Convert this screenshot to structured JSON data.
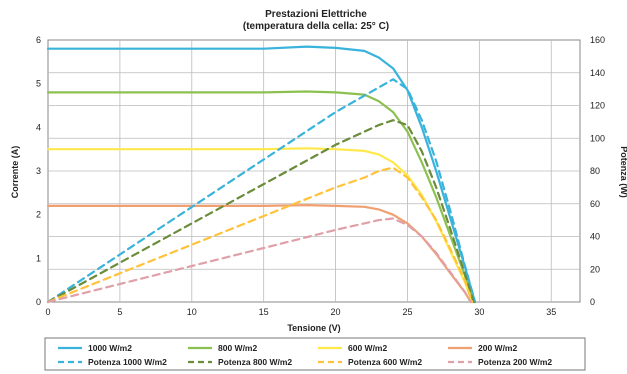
{
  "chart_data": {
    "type": "line",
    "title": "Prestazioni Elettriche",
    "subtitle": "(temperatura della cella: 25° C)",
    "xlabel": "Tensione (V)",
    "ylabel_left": "Corrente (A)",
    "ylabel_right": "Potenza (W)",
    "xlim": [
      0,
      37
    ],
    "ylim_left": [
      0,
      6
    ],
    "ylim_right": [
      0,
      160
    ],
    "x_ticks": [
      "0",
      "5",
      "10",
      "15",
      "20",
      "25",
      "30",
      "35"
    ],
    "y_left_ticks": [
      "0",
      "1",
      "2",
      "3",
      "4",
      "5",
      "6"
    ],
    "y_right_ticks": [
      "0",
      "20",
      "40",
      "60",
      "80",
      "100",
      "120",
      "140",
      "160"
    ],
    "grid": true,
    "legend_position": "bottom",
    "series": [
      {
        "name": "1000 W/m2",
        "axis": "left",
        "style": "solid",
        "color": "#3ab3dc",
        "points": [
          [
            0,
            5.8
          ],
          [
            5,
            5.8
          ],
          [
            10,
            5.8
          ],
          [
            15,
            5.8
          ],
          [
            18,
            5.85
          ],
          [
            20,
            5.82
          ],
          [
            22,
            5.75
          ],
          [
            23,
            5.6
          ],
          [
            24,
            5.35
          ],
          [
            25,
            4.85
          ],
          [
            26,
            4.0
          ],
          [
            27,
            3.0
          ],
          [
            28,
            1.9
          ],
          [
            29,
            0.8
          ],
          [
            29.7,
            0
          ]
        ]
      },
      {
        "name": "800 W/m2",
        "axis": "left",
        "style": "solid",
        "color": "#8cc152",
        "points": [
          [
            0,
            4.8
          ],
          [
            5,
            4.8
          ],
          [
            10,
            4.8
          ],
          [
            15,
            4.8
          ],
          [
            18,
            4.82
          ],
          [
            20,
            4.8
          ],
          [
            22,
            4.75
          ],
          [
            23,
            4.6
          ],
          [
            24,
            4.35
          ],
          [
            25,
            3.9
          ],
          [
            26,
            3.2
          ],
          [
            27,
            2.4
          ],
          [
            28,
            1.5
          ],
          [
            29,
            0.6
          ],
          [
            29.6,
            0
          ]
        ]
      },
      {
        "name": "600 W/m2",
        "axis": "left",
        "style": "solid",
        "color": "#ffe84a",
        "points": [
          [
            0,
            3.5
          ],
          [
            5,
            3.5
          ],
          [
            10,
            3.5
          ],
          [
            15,
            3.5
          ],
          [
            18,
            3.52
          ],
          [
            20,
            3.5
          ],
          [
            22,
            3.46
          ],
          [
            23,
            3.38
          ],
          [
            24,
            3.2
          ],
          [
            25,
            2.9
          ],
          [
            26,
            2.45
          ],
          [
            27,
            1.85
          ],
          [
            28,
            1.15
          ],
          [
            29,
            0.45
          ],
          [
            29.5,
            0
          ]
        ]
      },
      {
        "name": "200 W/m2",
        "axis": "left",
        "style": "solid",
        "color": "#f0a070",
        "points": [
          [
            0,
            2.2
          ],
          [
            5,
            2.2
          ],
          [
            10,
            2.2
          ],
          [
            15,
            2.2
          ],
          [
            18,
            2.22
          ],
          [
            20,
            2.2
          ],
          [
            22,
            2.18
          ],
          [
            23,
            2.12
          ],
          [
            24,
            2.0
          ],
          [
            25,
            1.8
          ],
          [
            26,
            1.5
          ],
          [
            27,
            1.1
          ],
          [
            28,
            0.65
          ],
          [
            29,
            0.22
          ],
          [
            29.4,
            0
          ]
        ]
      },
      {
        "name": "Potenza 1000 W/m2",
        "axis": "right",
        "style": "dashed",
        "color": "#3ab3dc",
        "points": [
          [
            0,
            0
          ],
          [
            5,
            29
          ],
          [
            10,
            58
          ],
          [
            15,
            87
          ],
          [
            20,
            116
          ],
          [
            22,
            126
          ],
          [
            23,
            131
          ],
          [
            24,
            136
          ],
          [
            25,
            130
          ],
          [
            26,
            111
          ],
          [
            27,
            86
          ],
          [
            28,
            55
          ],
          [
            29,
            22
          ],
          [
            29.7,
            0
          ]
        ]
      },
      {
        "name": "Potenza 800 W/m2",
        "axis": "right",
        "style": "dashed",
        "color": "#6b8c3a",
        "points": [
          [
            0,
            0
          ],
          [
            5,
            24
          ],
          [
            10,
            48
          ],
          [
            15,
            72
          ],
          [
            20,
            96
          ],
          [
            22,
            104
          ],
          [
            23,
            108
          ],
          [
            24,
            111
          ],
          [
            25,
            108
          ],
          [
            26,
            92
          ],
          [
            27,
            70
          ],
          [
            28,
            44
          ],
          [
            29,
            17
          ],
          [
            29.6,
            0
          ]
        ]
      },
      {
        "name": "Potenza 600 W/m2",
        "axis": "right",
        "style": "dashed",
        "color": "#ffc23a",
        "points": [
          [
            0,
            0
          ],
          [
            5,
            17.5
          ],
          [
            10,
            35
          ],
          [
            15,
            52.5
          ],
          [
            20,
            70
          ],
          [
            22,
            76
          ],
          [
            23,
            80
          ],
          [
            24,
            82
          ],
          [
            25,
            76
          ],
          [
            26,
            64
          ],
          [
            27,
            50
          ],
          [
            28,
            32
          ],
          [
            29,
            13
          ],
          [
            29.5,
            0
          ]
        ]
      },
      {
        "name": "Potenza 200 W/m2",
        "axis": "right",
        "style": "dashed",
        "color": "#e0a0a8",
        "points": [
          [
            0,
            0
          ],
          [
            5,
            11
          ],
          [
            10,
            22
          ],
          [
            15,
            33
          ],
          [
            20,
            44
          ],
          [
            22,
            48
          ],
          [
            23,
            50
          ],
          [
            24,
            51
          ],
          [
            25,
            47
          ],
          [
            26,
            40
          ],
          [
            27,
            30
          ],
          [
            28,
            18
          ],
          [
            29,
            6
          ],
          [
            29.4,
            0
          ]
        ]
      }
    ]
  }
}
